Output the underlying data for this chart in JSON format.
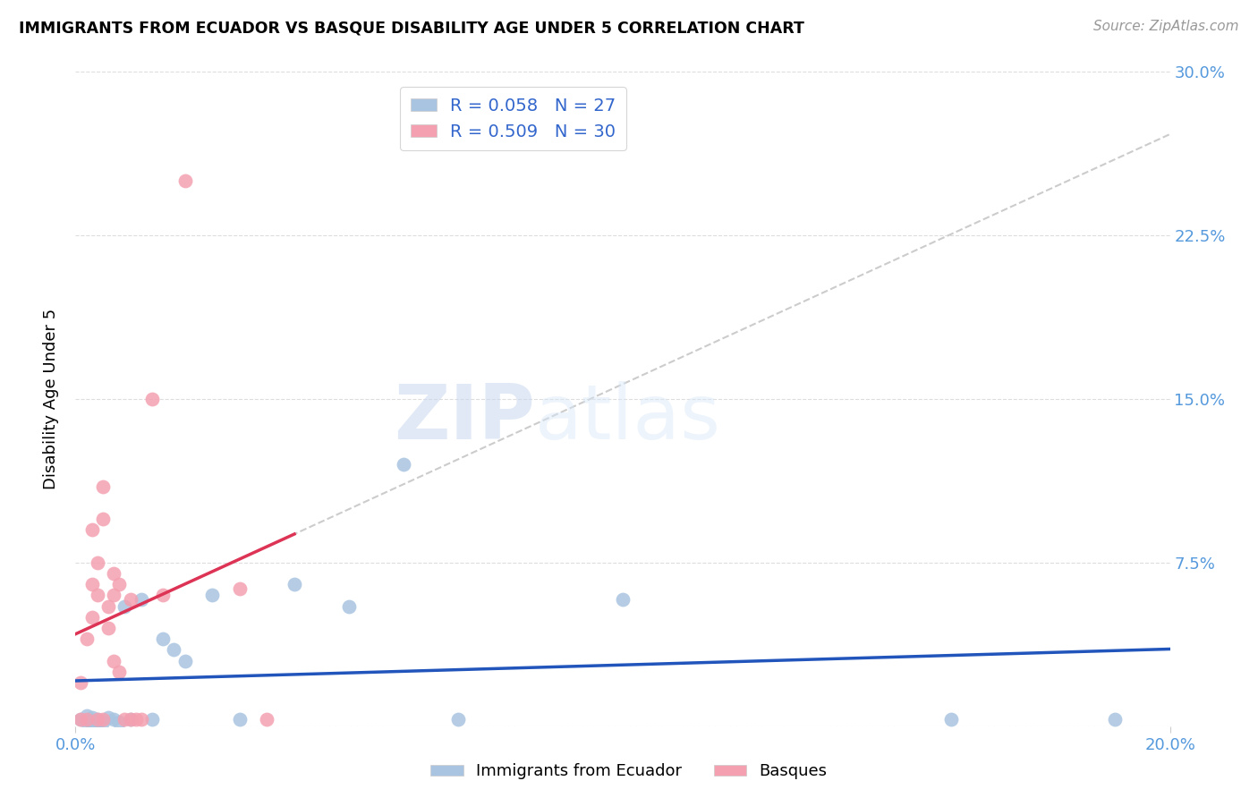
{
  "title": "IMMIGRANTS FROM ECUADOR VS BASQUE DISABILITY AGE UNDER 5 CORRELATION CHART",
  "source": "Source: ZipAtlas.com",
  "ylabel_label": "Disability Age Under 5",
  "xlim": [
    0.0,
    0.2
  ],
  "ylim": [
    0.0,
    0.3
  ],
  "legend_labels": [
    "Immigrants from Ecuador",
    "Basques"
  ],
  "r_ecuador": 0.058,
  "n_ecuador": 27,
  "r_basque": 0.509,
  "n_basque": 30,
  "color_ecuador": "#a8c4e0",
  "color_basque": "#f4a0b0",
  "line_color_ecuador": "#2255bb",
  "line_color_basque": "#dd3355",
  "dashed_line_color": "#cccccc",
  "background_color": "#ffffff",
  "watermark_zip": "ZIP",
  "watermark_atlas": "atlas",
  "ecuador_scatter_x": [
    0.001,
    0.002,
    0.002,
    0.003,
    0.003,
    0.004,
    0.004,
    0.005,
    0.006,
    0.007,
    0.008,
    0.009,
    0.01,
    0.012,
    0.014,
    0.016,
    0.018,
    0.02,
    0.025,
    0.03,
    0.04,
    0.05,
    0.06,
    0.07,
    0.1,
    0.16,
    0.19
  ],
  "ecuador_scatter_y": [
    0.003,
    0.002,
    0.005,
    0.001,
    0.004,
    0.002,
    0.003,
    0.002,
    0.004,
    0.003,
    0.002,
    0.055,
    0.003,
    0.058,
    0.003,
    0.04,
    0.035,
    0.03,
    0.06,
    0.003,
    0.065,
    0.055,
    0.12,
    0.003,
    0.058,
    0.003,
    0.003
  ],
  "basque_scatter_x": [
    0.001,
    0.001,
    0.002,
    0.002,
    0.003,
    0.003,
    0.003,
    0.004,
    0.004,
    0.004,
    0.005,
    0.005,
    0.005,
    0.006,
    0.006,
    0.007,
    0.007,
    0.007,
    0.008,
    0.008,
    0.009,
    0.01,
    0.01,
    0.011,
    0.012,
    0.014,
    0.016,
    0.02,
    0.03,
    0.035
  ],
  "basque_scatter_y": [
    0.003,
    0.02,
    0.003,
    0.04,
    0.05,
    0.065,
    0.09,
    0.003,
    0.06,
    0.075,
    0.095,
    0.11,
    0.003,
    0.055,
    0.045,
    0.03,
    0.06,
    0.07,
    0.025,
    0.065,
    0.003,
    0.003,
    0.058,
    0.003,
    0.003,
    0.15,
    0.06,
    0.25,
    0.063,
    0.003
  ],
  "ytick_positions": [
    0.0,
    0.075,
    0.15,
    0.225,
    0.3
  ],
  "ytick_labels": [
    "",
    "7.5%",
    "15.0%",
    "22.5%",
    "30.0%"
  ],
  "xtick_positions": [
    0.0,
    0.2
  ],
  "xtick_labels": [
    "0.0%",
    "20.0%"
  ]
}
